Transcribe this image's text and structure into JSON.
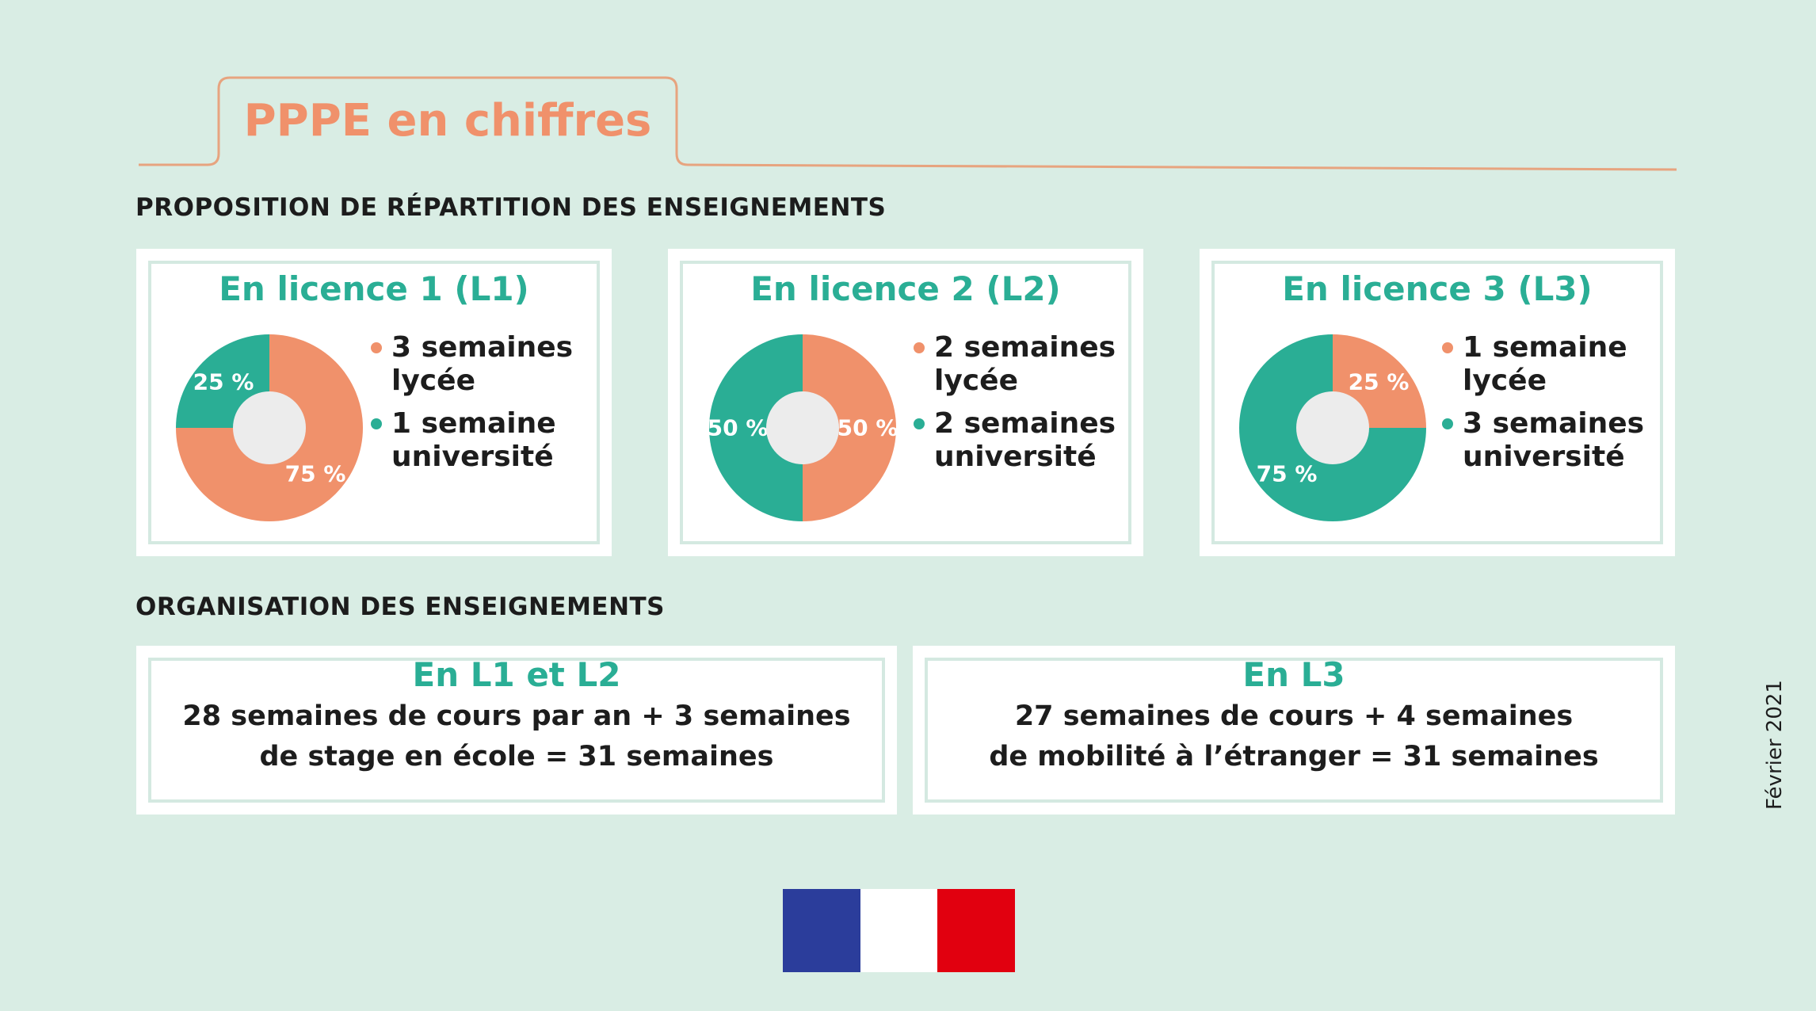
{
  "header": {
    "title": "PPPE en chiffres",
    "colors": {
      "accent": "#f0916b",
      "tab_line": "#e7a47f"
    }
  },
  "sections": {
    "repartition_title": "PROPOSITION DE RÉPARTITION DES ENSEIGNEMENTS",
    "organisation_title": "ORGANISATION DES ENSEIGNEMENTS"
  },
  "colors": {
    "lycee": "#f0916b",
    "universite": "#2aae95",
    "hole": "#ececec",
    "card_border": "#d4e9e1",
    "background": "#d9ede4"
  },
  "chart_data": [
    {
      "type": "pie",
      "title": "En licence 1 (L1)",
      "categories": [
        "lycée",
        "université"
      ],
      "values": [
        75,
        25
      ],
      "value_labels": [
        "75 %",
        "25 %"
      ],
      "legend": [
        "3 semaines lycée",
        "1 semaine université"
      ]
    },
    {
      "type": "pie",
      "title": "En licence 2 (L2)",
      "categories": [
        "lycée",
        "université"
      ],
      "values": [
        50,
        50
      ],
      "value_labels": [
        "50 %",
        "50 %"
      ],
      "legend": [
        "2 semaines lycée",
        "2 semaines université"
      ]
    },
    {
      "type": "pie",
      "title": "En licence 3 (L3)",
      "categories": [
        "lycée",
        "université"
      ],
      "values": [
        25,
        75
      ],
      "value_labels": [
        "25 %",
        "75 %"
      ],
      "legend": [
        "1 semaine lycée",
        "3 semaines université"
      ]
    }
  ],
  "organisation": [
    {
      "title": "En L1 et L2",
      "lines": [
        "28 semaines de cours par an + 3 semaines",
        "de stage en école = 31 semaines"
      ]
    },
    {
      "title": "En L3",
      "lines": [
        "27 semaines de cours + 4 semaines",
        "de mobilité à l’étranger = 31 semaines"
      ]
    }
  ],
  "date": "Février 2021",
  "flag": {
    "colors": [
      "#2b3d9b",
      "#ffffff",
      "#e1000f"
    ]
  }
}
